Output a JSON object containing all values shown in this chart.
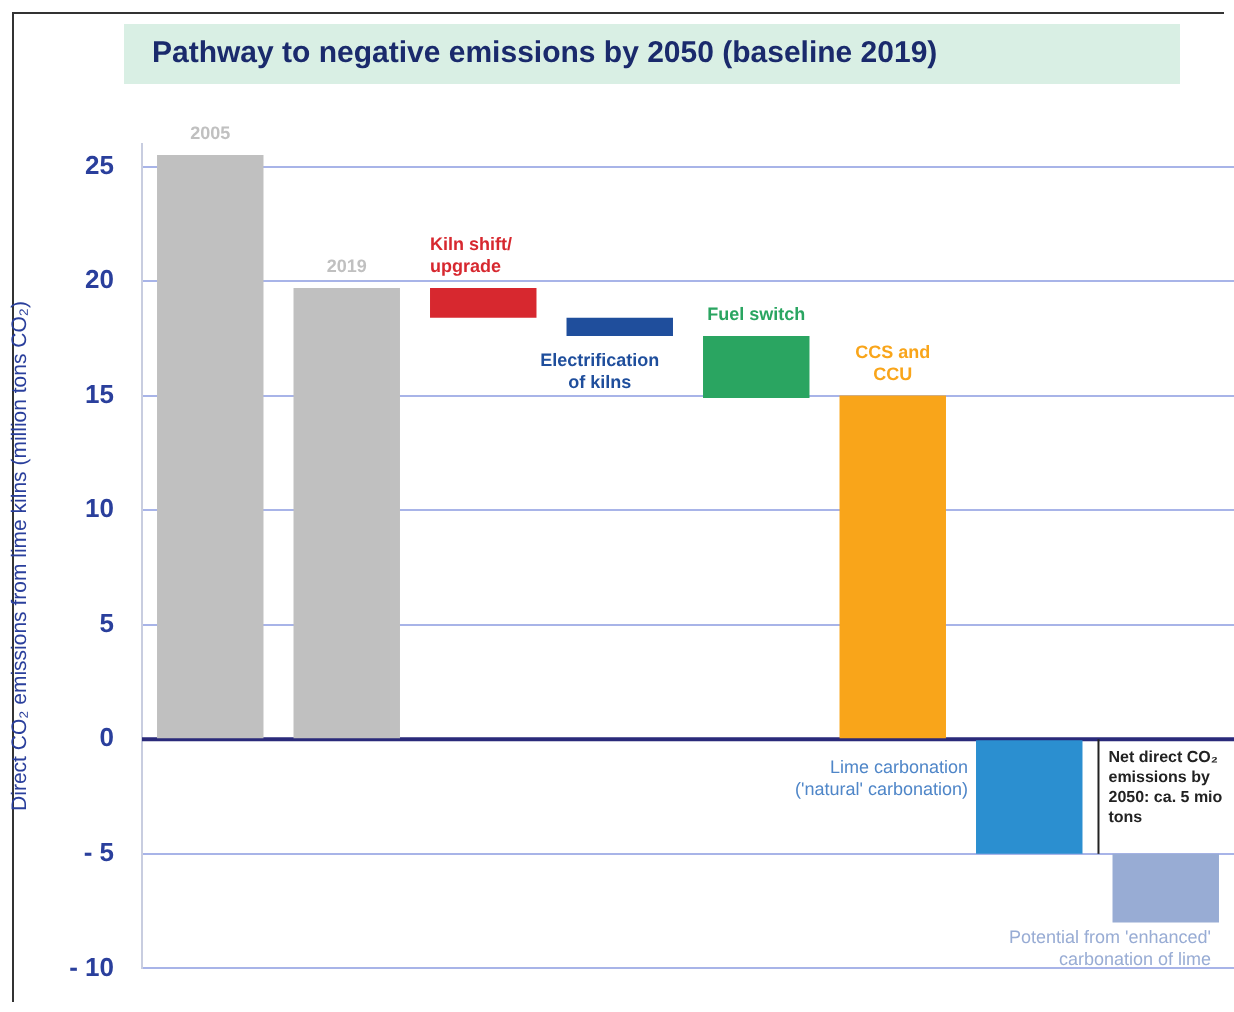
{
  "chart_data": {
    "type": "bar",
    "title": "Pathway to negative emissions by 2050 (baseline 2019)",
    "ylabel": "Direct CO₂ emissions from lime kilns (million tons CO₂)",
    "categories": [
      null,
      null,
      null,
      null,
      null,
      null,
      null,
      null
    ],
    "series": [
      {
        "name": "2005",
        "color": "#c0c0c0",
        "values": [
          25.5,
          null,
          null,
          null,
          null,
          null,
          null,
          null
        ],
        "base": [
          0,
          null,
          null,
          null,
          null,
          null,
          null,
          null
        ]
      },
      {
        "name": "2019",
        "color": "#c0c0c0",
        "values": [
          null,
          19.7,
          null,
          null,
          null,
          null,
          null,
          null
        ],
        "base": [
          null,
          0,
          null,
          null,
          null,
          null,
          null,
          null
        ]
      },
      {
        "name": "Kiln shift/ upgrade",
        "color": "#d7282f",
        "values": [
          null,
          null,
          1.3,
          null,
          null,
          null,
          null,
          null
        ],
        "base": [
          null,
          null,
          18.4,
          null,
          null,
          null,
          null,
          null
        ]
      },
      {
        "name": "Electrification of kilns",
        "color": "#1f4e9c",
        "values": [
          null,
          null,
          null,
          0.8,
          null,
          null,
          null,
          null
        ],
        "base": [
          null,
          null,
          null,
          17.6,
          null,
          null,
          null,
          null
        ]
      },
      {
        "name": "Fuel switch",
        "color": "#2aa561",
        "values": [
          null,
          null,
          null,
          null,
          2.7,
          null,
          null,
          null
        ],
        "base": [
          null,
          null,
          null,
          null,
          14.9,
          null,
          null,
          null
        ]
      },
      {
        "name": "CCS and CCU",
        "color": "#f9a51a",
        "values": [
          null,
          null,
          null,
          null,
          null,
          15,
          null,
          null
        ],
        "base": [
          null,
          null,
          null,
          null,
          null,
          0,
          null,
          null
        ]
      },
      {
        "name": "Lime carbonation ('natural' carbonation)",
        "color": "#2b8fd0",
        "values": [
          null,
          null,
          null,
          null,
          null,
          null,
          -5,
          null
        ],
        "base": [
          null,
          null,
          null,
          null,
          null,
          null,
          0,
          null
        ]
      },
      {
        "name": "Potential from 'enhanced' carbonation of lime",
        "color": "#98acd4",
        "values": [
          null,
          null,
          null,
          null,
          null,
          null,
          null,
          -3
        ],
        "base": [
          null,
          null,
          null,
          null,
          null,
          null,
          null,
          -5
        ]
      }
    ],
    "ylim": [
      -10,
      26
    ],
    "yticks": [
      {
        "value": -10,
        "label": "- 10"
      },
      {
        "value": -5,
        "label": "- 5"
      },
      0,
      5,
      10,
      15,
      20,
      25
    ],
    "grid": "y",
    "tick_labels": "y",
    "legend": false,
    "ref_lines": [
      {
        "axis": "y",
        "value": 0,
        "color": "#2a2a7a"
      }
    ],
    "annotations": [
      "Net direct CO₂ emissions by 2050: ca. 5 mio tons"
    ]
  }
}
